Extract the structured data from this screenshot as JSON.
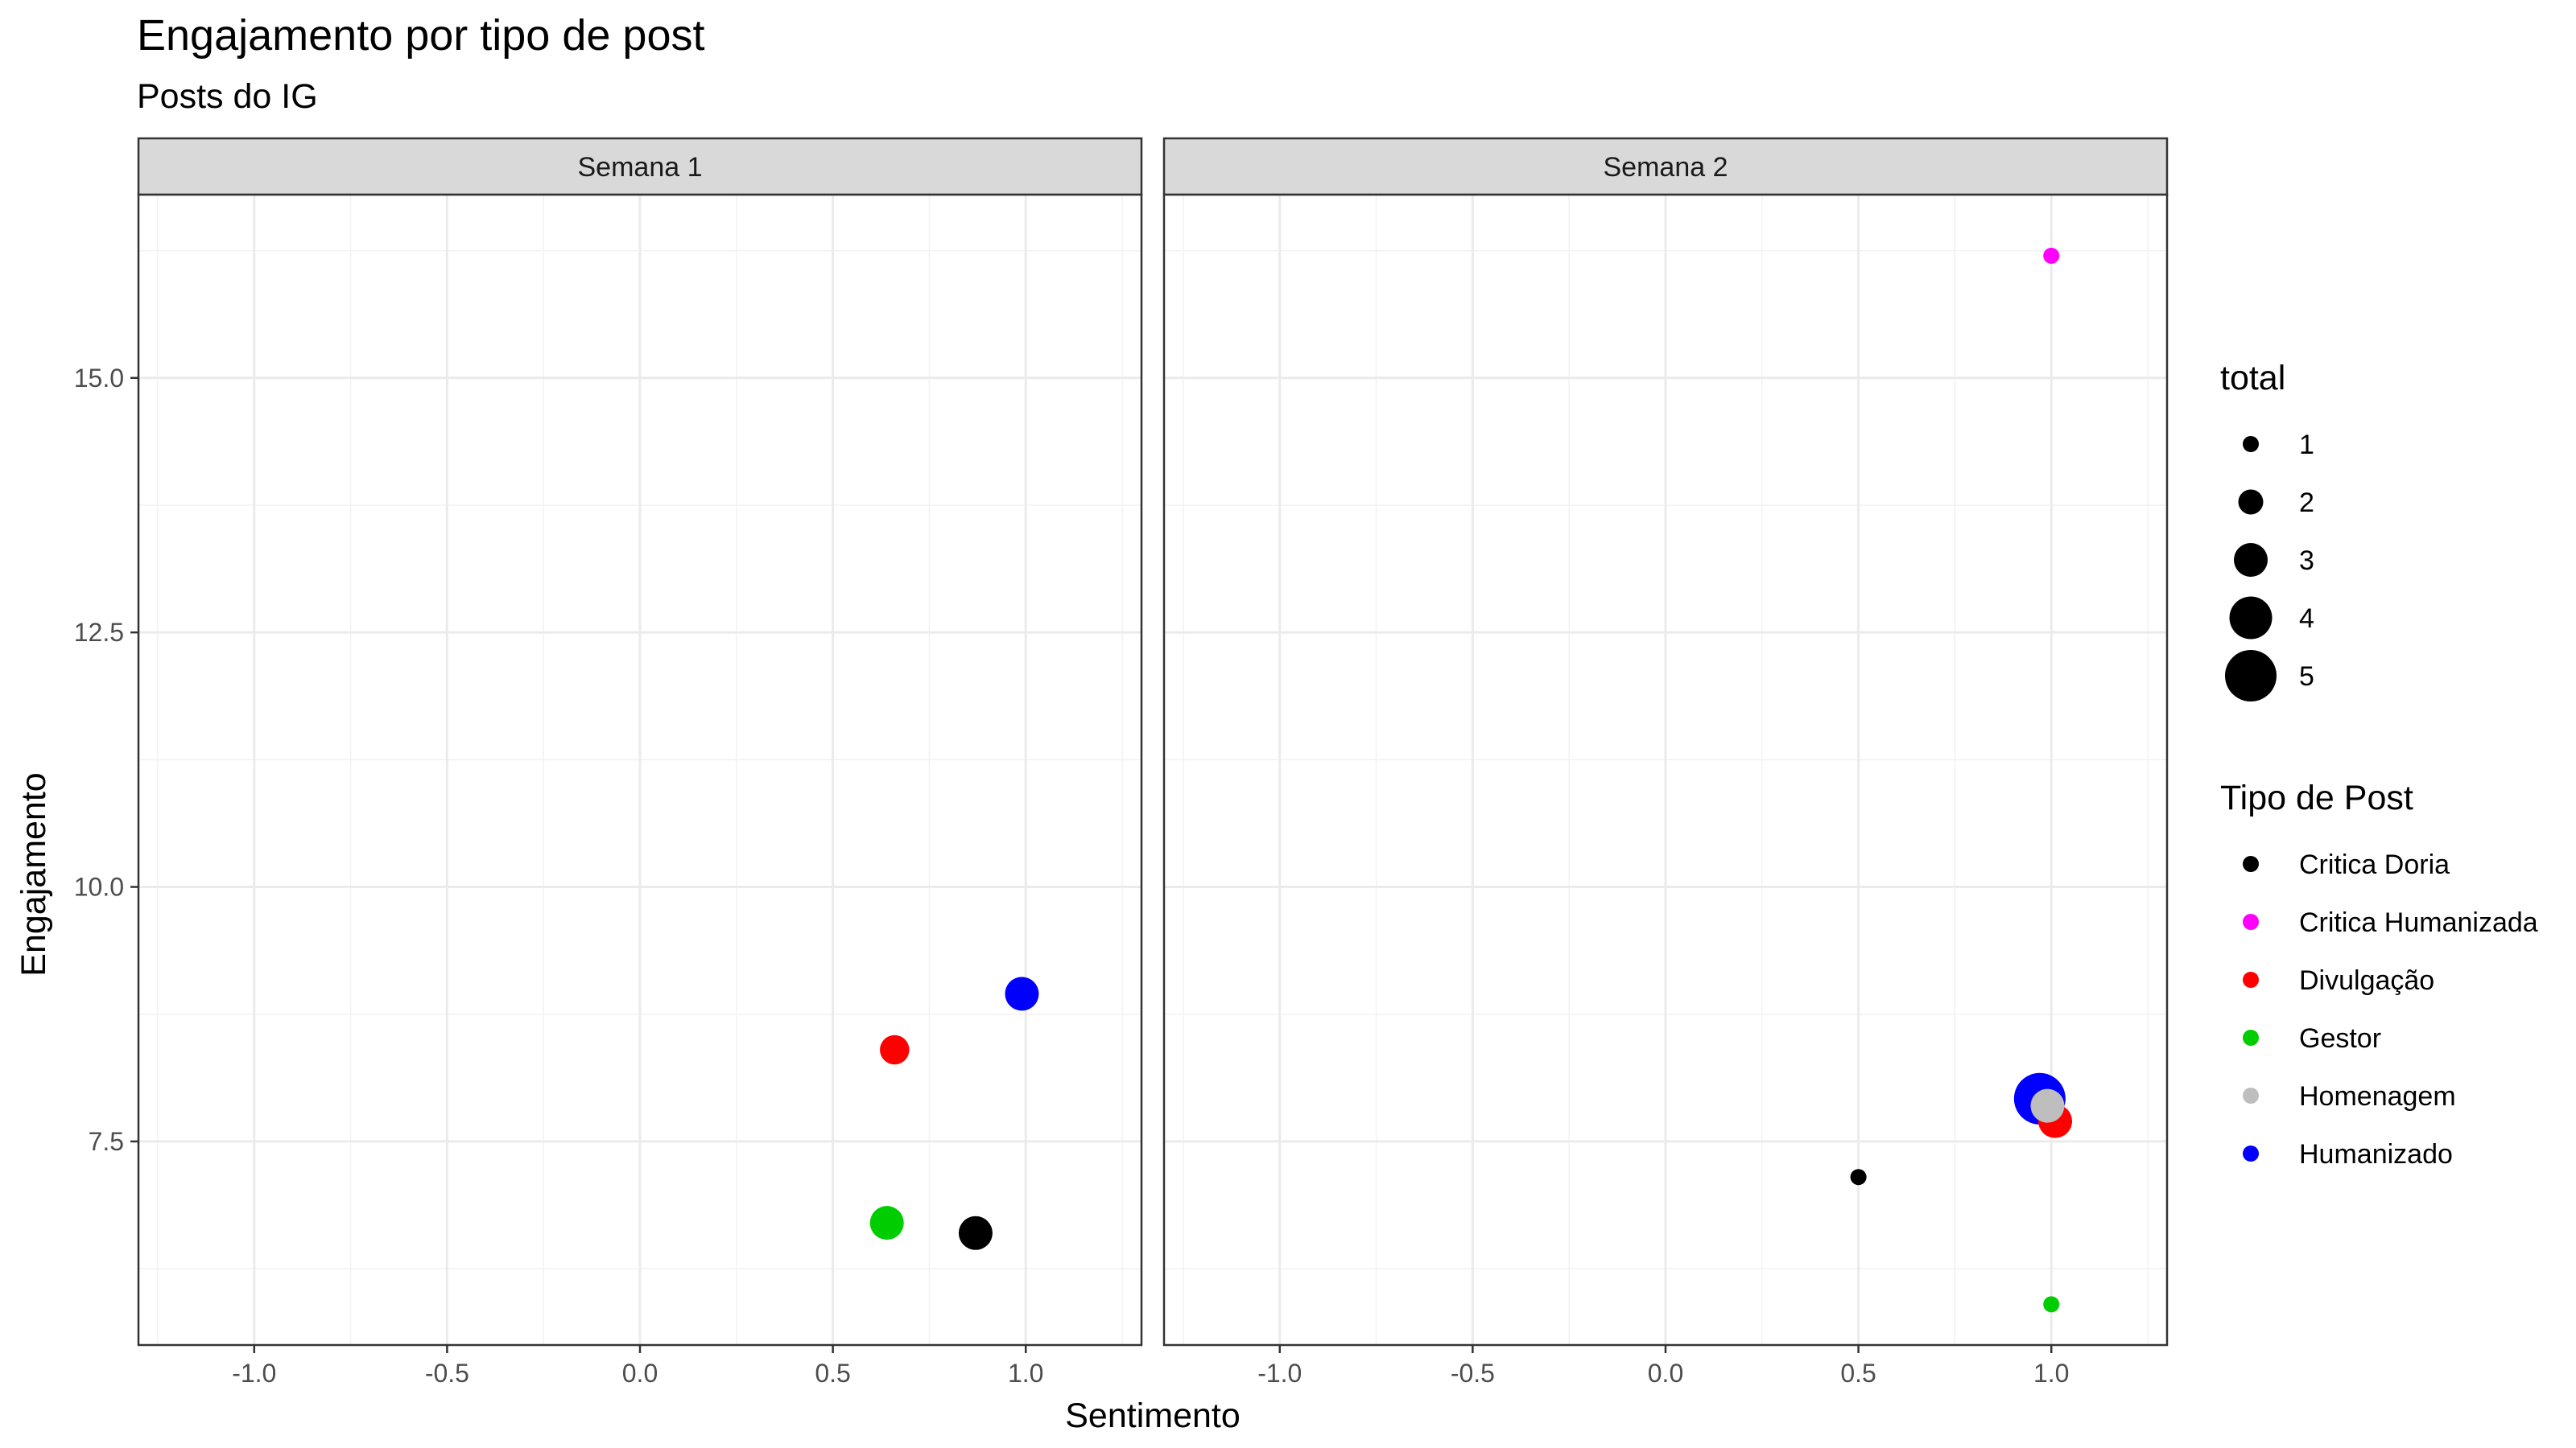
{
  "chart_data": {
    "type": "scatter",
    "title": "Engajamento por tipo de post",
    "subtitle": "Posts do  IG",
    "xlabel": "Sentimento",
    "ylabel": "Engajamento",
    "xlim": [
      -1.3,
      1.3
    ],
    "ylim": [
      5.5,
      16.8
    ],
    "x_ticks": [
      {
        "value": -1.0,
        "label": "-1.0"
      },
      {
        "value": -0.5,
        "label": "-0.5"
      },
      {
        "value": 0.0,
        "label": "0.0"
      },
      {
        "value": 0.5,
        "label": "0.5"
      },
      {
        "value": 1.0,
        "label": "1.0"
      }
    ],
    "y_ticks": [
      {
        "value": 7.5,
        "label": "7.5"
      },
      {
        "value": 10.0,
        "label": "10.0"
      },
      {
        "value": 12.5,
        "label": "12.5"
      },
      {
        "value": 15.0,
        "label": "15.0"
      }
    ],
    "grid": true,
    "facets": [
      {
        "label": "Semana 1",
        "points": [
          {
            "x": 0.87,
            "y": 6.6,
            "total": 3,
            "tipo": "Critica Doria"
          },
          {
            "x": 0.66,
            "y": 8.4,
            "total": 2.5,
            "tipo": "Divulgação"
          },
          {
            "x": 0.64,
            "y": 6.7,
            "total": 3,
            "tipo": "Gestor"
          },
          {
            "x": 0.99,
            "y": 8.95,
            "total": 3,
            "tipo": "Humanizado"
          }
        ]
      },
      {
        "label": "Semana 2",
        "points": [
          {
            "x": 1.0,
            "y": 16.2,
            "total": 1,
            "tipo": "Critica Humanizada"
          },
          {
            "x": 0.5,
            "y": 7.15,
            "total": 1,
            "tipo": "Critica Doria"
          },
          {
            "x": 1.0,
            "y": 5.9,
            "total": 1,
            "tipo": "Gestor"
          },
          {
            "x": 1.01,
            "y": 7.7,
            "total": 3,
            "tipo": "Divulgação"
          },
          {
            "x": 0.99,
            "y": 7.85,
            "total": 3,
            "tipo": "Homenagem"
          },
          {
            "x": 0.97,
            "y": 7.92,
            "total": 5,
            "tipo": "Humanizado"
          }
        ]
      }
    ],
    "legend": {
      "placement": "right",
      "size": {
        "title": "total",
        "entries": [
          {
            "label": "1",
            "total": 1
          },
          {
            "label": "2",
            "total": 2
          },
          {
            "label": "3",
            "total": 3
          },
          {
            "label": "4",
            "total": 4
          },
          {
            "label": "5",
            "total": 5
          }
        ]
      },
      "color": {
        "title": "Tipo de Post",
        "entries": [
          {
            "label": "Critica Doria",
            "color": "#000000"
          },
          {
            "label": "Critica Humanizada",
            "color": "#ff00ff"
          },
          {
            "label": "Divulgação",
            "color": "#ff0000"
          },
          {
            "label": "Gestor",
            "color": "#00cd00"
          },
          {
            "label": "Homenagem",
            "color": "#bebebe"
          },
          {
            "label": "Humanizado",
            "color": "#0000ff"
          }
        ]
      }
    }
  }
}
